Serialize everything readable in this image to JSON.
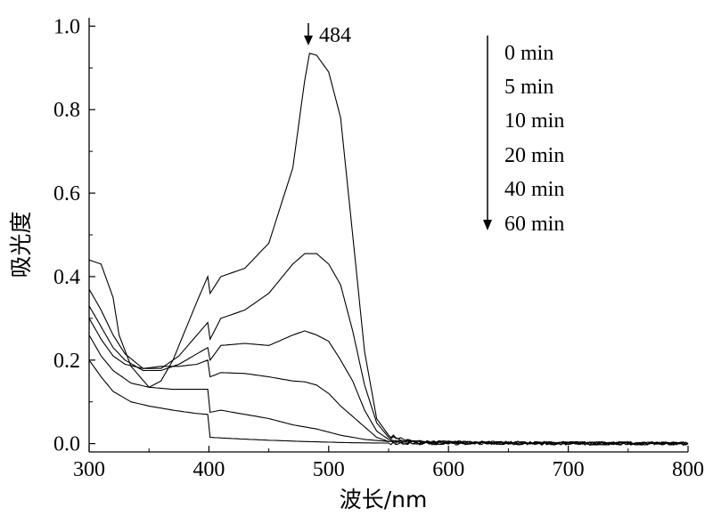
{
  "chart_data": {
    "type": "line",
    "xlabel": "波长/nm",
    "ylabel": "吸光度",
    "xlim": [
      300,
      800
    ],
    "ylim": [
      -0.02,
      1.02
    ],
    "x_ticks": [
      "300",
      "400",
      "500",
      "600",
      "700",
      "800"
    ],
    "y_ticks": [
      "0.0",
      "0.2",
      "0.4",
      "0.6",
      "0.8",
      "1.0"
    ],
    "grid": false,
    "legend_position": "top-right",
    "annotation": {
      "text": "484",
      "x": 484
    },
    "series": [
      {
        "name": "0 min",
        "points": [
          [
            300,
            0.44
          ],
          [
            310,
            0.43
          ],
          [
            320,
            0.35
          ],
          [
            325,
            0.26
          ],
          [
            335,
            0.185
          ],
          [
            350,
            0.135
          ],
          [
            360,
            0.15
          ],
          [
            370,
            0.2
          ],
          [
            380,
            0.27
          ],
          [
            390,
            0.34
          ],
          [
            399,
            0.4
          ],
          [
            401,
            0.36
          ],
          [
            410,
            0.4
          ],
          [
            430,
            0.42
          ],
          [
            450,
            0.48
          ],
          [
            470,
            0.66
          ],
          [
            480,
            0.87
          ],
          [
            484,
            0.935
          ],
          [
            490,
            0.93
          ],
          [
            500,
            0.89
          ],
          [
            510,
            0.78
          ],
          [
            520,
            0.5
          ],
          [
            530,
            0.22
          ],
          [
            540,
            0.06
          ],
          [
            550,
            0.02
          ],
          [
            570,
            0.005
          ],
          [
            600,
            0.003
          ],
          [
            800,
            0.0
          ]
        ]
      },
      {
        "name": "5 min",
        "points": [
          [
            300,
            0.37
          ],
          [
            310,
            0.32
          ],
          [
            320,
            0.26
          ],
          [
            330,
            0.215
          ],
          [
            345,
            0.18
          ],
          [
            360,
            0.18
          ],
          [
            375,
            0.21
          ],
          [
            390,
            0.26
          ],
          [
            399,
            0.29
          ],
          [
            401,
            0.25
          ],
          [
            410,
            0.3
          ],
          [
            430,
            0.32
          ],
          [
            450,
            0.36
          ],
          [
            470,
            0.43
          ],
          [
            480,
            0.455
          ],
          [
            490,
            0.455
          ],
          [
            500,
            0.43
          ],
          [
            510,
            0.38
          ],
          [
            520,
            0.27
          ],
          [
            530,
            0.14
          ],
          [
            540,
            0.05
          ],
          [
            550,
            0.015
          ],
          [
            570,
            0.005
          ],
          [
            600,
            0.002
          ],
          [
            800,
            0.0
          ]
        ]
      },
      {
        "name": "10 min",
        "points": [
          [
            300,
            0.33
          ],
          [
            310,
            0.28
          ],
          [
            320,
            0.23
          ],
          [
            330,
            0.2
          ],
          [
            345,
            0.175
          ],
          [
            360,
            0.175
          ],
          [
            375,
            0.19
          ],
          [
            390,
            0.215
          ],
          [
            399,
            0.23
          ],
          [
            401,
            0.2
          ],
          [
            410,
            0.235
          ],
          [
            430,
            0.24
          ],
          [
            450,
            0.235
          ],
          [
            470,
            0.26
          ],
          [
            480,
            0.27
          ],
          [
            490,
            0.26
          ],
          [
            500,
            0.245
          ],
          [
            510,
            0.2
          ],
          [
            520,
            0.15
          ],
          [
            530,
            0.08
          ],
          [
            540,
            0.03
          ],
          [
            550,
            0.01
          ],
          [
            570,
            0.004
          ],
          [
            600,
            0.002
          ],
          [
            800,
            0.0
          ]
        ]
      },
      {
        "name": "20 min",
        "points": [
          [
            300,
            0.3
          ],
          [
            310,
            0.25
          ],
          [
            320,
            0.21
          ],
          [
            330,
            0.19
          ],
          [
            345,
            0.18
          ],
          [
            360,
            0.185
          ],
          [
            375,
            0.185
          ],
          [
            390,
            0.19
          ],
          [
            399,
            0.2
          ],
          [
            401,
            0.16
          ],
          [
            410,
            0.17
          ],
          [
            430,
            0.168
          ],
          [
            450,
            0.16
          ],
          [
            470,
            0.15
          ],
          [
            480,
            0.148
          ],
          [
            490,
            0.14
          ],
          [
            500,
            0.12
          ],
          [
            510,
            0.09
          ],
          [
            520,
            0.065
          ],
          [
            530,
            0.04
          ],
          [
            540,
            0.015
          ],
          [
            550,
            0.005
          ],
          [
            570,
            0.002
          ],
          [
            800,
            0.0
          ]
        ]
      },
      {
        "name": "40 min",
        "points": [
          [
            300,
            0.26
          ],
          [
            310,
            0.21
          ],
          [
            320,
            0.175
          ],
          [
            335,
            0.145
          ],
          [
            350,
            0.135
          ],
          [
            370,
            0.13
          ],
          [
            390,
            0.13
          ],
          [
            399,
            0.13
          ],
          [
            401,
            0.075
          ],
          [
            410,
            0.08
          ],
          [
            430,
            0.07
          ],
          [
            450,
            0.06
          ],
          [
            470,
            0.045
          ],
          [
            490,
            0.035
          ],
          [
            510,
            0.02
          ],
          [
            530,
            0.01
          ],
          [
            550,
            0.005
          ],
          [
            570,
            0.002
          ],
          [
            800,
            0.0
          ]
        ]
      },
      {
        "name": "60 min",
        "points": [
          [
            300,
            0.2
          ],
          [
            310,
            0.16
          ],
          [
            320,
            0.125
          ],
          [
            335,
            0.1
          ],
          [
            350,
            0.09
          ],
          [
            370,
            0.08
          ],
          [
            390,
            0.072
          ],
          [
            399,
            0.07
          ],
          [
            401,
            0.015
          ],
          [
            420,
            0.012
          ],
          [
            450,
            0.008
          ],
          [
            480,
            0.005
          ],
          [
            520,
            0.002
          ],
          [
            560,
            0.001
          ],
          [
            800,
            0.0
          ]
        ]
      }
    ]
  }
}
